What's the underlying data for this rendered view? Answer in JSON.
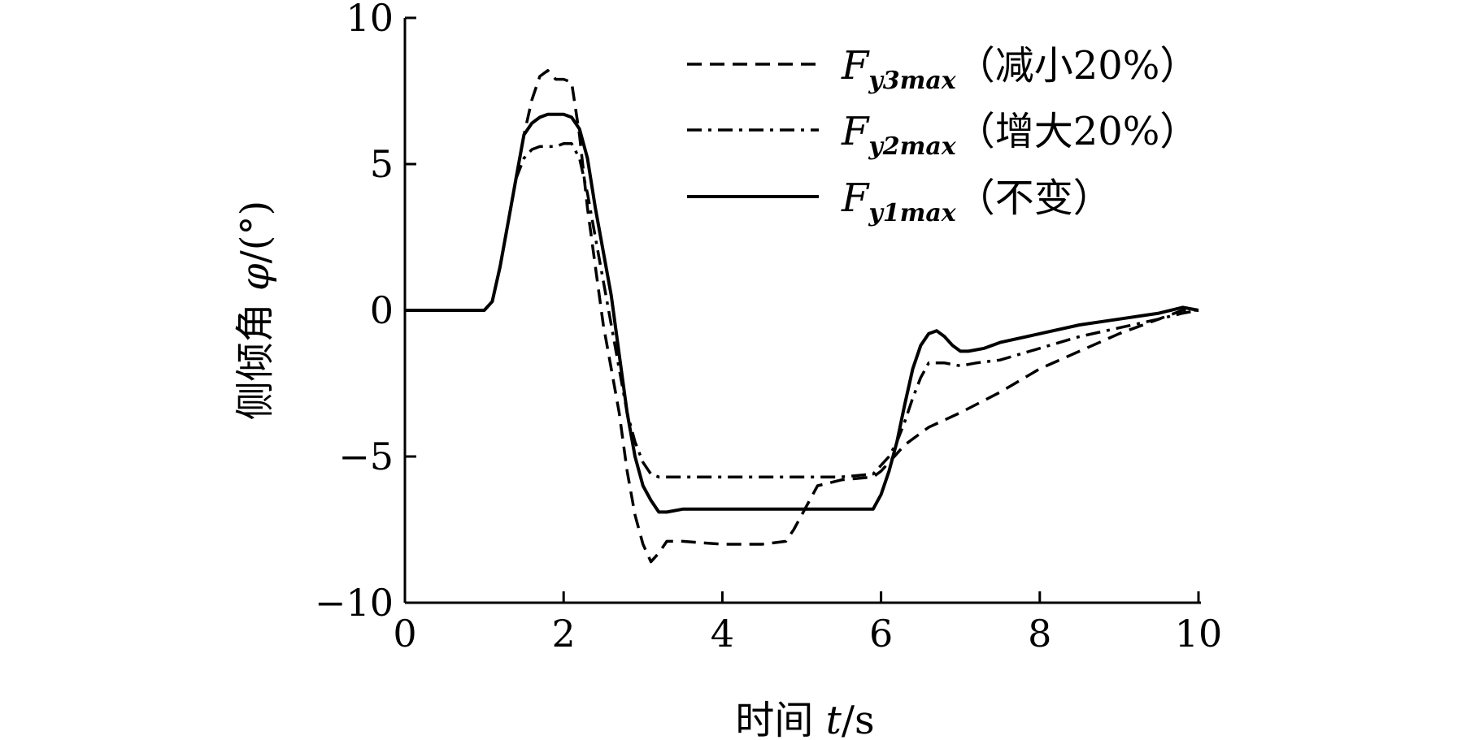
{
  "chart_data": {
    "type": "line",
    "xlabel": {
      "prefix": "时间 ",
      "var": "t",
      "unit": "/s"
    },
    "ylabel": {
      "prefix": "侧倾角 ",
      "var": "φ",
      "unit": "/(°)"
    },
    "xlim": [
      0,
      10
    ],
    "ylim": [
      -10,
      10
    ],
    "x_ticks": [
      0,
      2,
      4,
      6,
      8,
      10
    ],
    "y_ticks": [
      10,
      5,
      0,
      -5,
      -10
    ],
    "x_tick_labels": [
      "0",
      "2",
      "4",
      "6",
      "8",
      "10"
    ],
    "y_tick_labels": [
      "10",
      "5",
      "0",
      "−5",
      "−10"
    ],
    "grid": false,
    "legend_position": "top-right",
    "series": [
      {
        "name": "F_y3max（减小20%）",
        "legend_main": "F",
        "legend_sub": "y3max",
        "legend_note": "（减小20%）",
        "style": "dashed",
        "color": "#000000",
        "x": [
          0,
          1.0,
          1.1,
          1.2,
          1.3,
          1.4,
          1.5,
          1.6,
          1.7,
          1.8,
          1.9,
          2.0,
          2.1,
          2.2,
          2.3,
          2.4,
          2.5,
          2.6,
          2.7,
          2.8,
          2.9,
          3.0,
          3.1,
          3.2,
          3.3,
          3.5,
          4.0,
          4.5,
          4.8,
          4.9,
          5.0,
          5.2,
          5.5,
          5.9,
          6.0,
          6.1,
          6.2,
          6.3,
          6.4,
          6.6,
          7.0,
          7.5,
          8.0,
          8.5,
          9.0,
          9.5,
          9.8,
          10.0
        ],
        "y": [
          0,
          0,
          0.3,
          1.5,
          3.0,
          4.5,
          6.0,
          7.2,
          8.0,
          8.2,
          7.9,
          7.9,
          7.8,
          6.0,
          3.5,
          1.5,
          -0.5,
          -2.0,
          -3.5,
          -5.5,
          -7.0,
          -8.0,
          -8.6,
          -8.3,
          -7.9,
          -7.9,
          -8.0,
          -8.0,
          -7.9,
          -7.5,
          -7.0,
          -6.0,
          -5.8,
          -5.7,
          -5.5,
          -5.2,
          -4.9,
          -4.6,
          -4.4,
          -4.0,
          -3.5,
          -2.8,
          -2.0,
          -1.4,
          -0.8,
          -0.3,
          0.0,
          0.0
        ]
      },
      {
        "name": "F_y2max（增大20%）",
        "legend_main": "F",
        "legend_sub": "y2max",
        "legend_note": "（增大20%）",
        "style": "dashdot",
        "color": "#000000",
        "x": [
          0,
          1.0,
          1.1,
          1.2,
          1.3,
          1.4,
          1.5,
          1.6,
          1.7,
          1.8,
          1.9,
          2.0,
          2.1,
          2.2,
          2.3,
          2.4,
          2.5,
          2.6,
          2.7,
          2.8,
          2.9,
          3.0,
          3.1,
          3.2,
          3.5,
          4.0,
          4.5,
          5.0,
          5.5,
          5.9,
          6.0,
          6.1,
          6.2,
          6.3,
          6.4,
          6.5,
          6.6,
          6.8,
          7.0,
          7.2,
          7.5,
          8.0,
          8.5,
          9.0,
          9.5,
          9.8,
          10.0
        ],
        "y": [
          0,
          0,
          0.3,
          1.5,
          3.0,
          4.5,
          5.2,
          5.5,
          5.6,
          5.6,
          5.6,
          5.7,
          5.7,
          5.2,
          4.0,
          2.5,
          1.0,
          -0.5,
          -2.0,
          -3.5,
          -4.5,
          -5.2,
          -5.6,
          -5.7,
          -5.7,
          -5.7,
          -5.7,
          -5.7,
          -5.7,
          -5.6,
          -5.3,
          -5.0,
          -4.5,
          -3.8,
          -3.0,
          -2.3,
          -1.8,
          -1.8,
          -1.9,
          -1.8,
          -1.7,
          -1.3,
          -0.9,
          -0.6,
          -0.3,
          -0.1,
          0.0
        ]
      },
      {
        "name": "F_y1max（不变）",
        "legend_main": "F",
        "legend_sub": "y1max",
        "legend_note": "（不变）",
        "style": "solid",
        "color": "#000000",
        "x": [
          0,
          1.0,
          1.1,
          1.2,
          1.3,
          1.4,
          1.5,
          1.6,
          1.7,
          1.8,
          1.9,
          2.0,
          2.1,
          2.2,
          2.3,
          2.4,
          2.5,
          2.6,
          2.7,
          2.8,
          2.9,
          3.0,
          3.1,
          3.2,
          3.3,
          3.5,
          4.0,
          4.5,
          5.0,
          5.5,
          5.9,
          6.0,
          6.1,
          6.2,
          6.3,
          6.4,
          6.5,
          6.6,
          6.7,
          6.8,
          6.9,
          7.0,
          7.1,
          7.3,
          7.5,
          8.0,
          8.5,
          9.0,
          9.5,
          9.8,
          10.0
        ],
        "y": [
          0,
          0,
          0.3,
          1.5,
          3.0,
          4.5,
          6.0,
          6.4,
          6.6,
          6.7,
          6.7,
          6.7,
          6.6,
          6.2,
          5.2,
          3.5,
          2.0,
          0.5,
          -1.5,
          -3.5,
          -5.0,
          -6.0,
          -6.5,
          -6.9,
          -6.9,
          -6.8,
          -6.8,
          -6.8,
          -6.8,
          -6.8,
          -6.8,
          -6.3,
          -5.5,
          -4.5,
          -3.2,
          -2.0,
          -1.2,
          -0.8,
          -0.7,
          -0.9,
          -1.2,
          -1.4,
          -1.4,
          -1.3,
          -1.1,
          -0.8,
          -0.5,
          -0.3,
          -0.1,
          0.1,
          0.0
        ]
      }
    ]
  }
}
